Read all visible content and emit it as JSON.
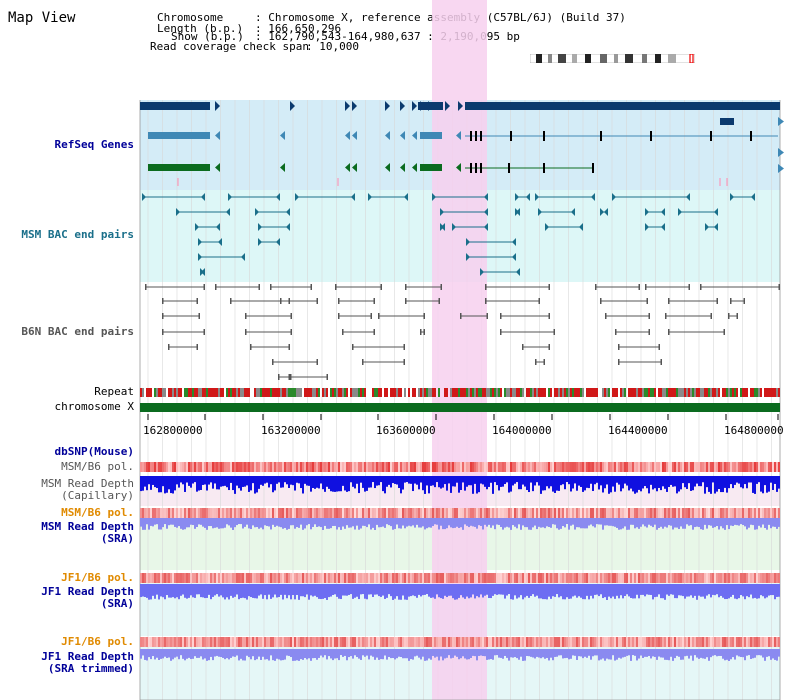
{
  "page_title": "Map View",
  "info": {
    "chromosome_label": "Chromosome",
    "chromosome_value": ": Chromosome X, reference assembly (C57BL/6J) (Build 37)",
    "length_label": "Length (b.p.)",
    "length_value": ": 166,650,296",
    "show_label": "Show (b.p.)",
    "show_value": ": 162,790,543-164,980,637 : 2,190,095 bp",
    "coverage_label": "Read coverage check span",
    "coverage_value": ": 10,000"
  },
  "tracks": {
    "refseq": "RefSeq Genes",
    "msm_bac": "MSM BAC end pairs",
    "b6n_bac": "B6N BAC end pairs",
    "repeat": "Repeat",
    "chromosome": "chromosome X",
    "dbsnp": "dbSNP(Mouse)",
    "msm_pol1": "MSM/B6 pol.",
    "msm_depth_cap_1": "MSM Read Depth",
    "msm_depth_cap_2": "(Capillary)",
    "msm_pol2": "MSM/B6 pol.",
    "msm_depth_sra_1": "MSM Read Depth",
    "msm_depth_sra_2": "(SRA)",
    "jf1_pol1": "JF1/B6 pol.",
    "jf1_depth_sra_1": "JF1 Read Depth",
    "jf1_depth_sra_2": "(SRA)",
    "jf1_pol2": "JF1/B6 pol.",
    "jf1_depth_trim_1": "JF1 Read Depth",
    "jf1_depth_trim_2": "(SRA trimmed)"
  },
  "axis_ticks": [
    "162800000",
    "163200000",
    "163600000",
    "164000000",
    "164400000",
    "164800000"
  ],
  "colors": {
    "highlight": "#f7d0ee",
    "refseq_bg": "#d4ecf7",
    "msm_bac_bg": "#ddf7f7",
    "gene_dark": "#0b3a6e",
    "gene_mid": "#3f88b5",
    "gene_green": "#0b6b1f",
    "msm_bac": "#1a6f8a",
    "b6n_bac": "#555555",
    "chromosome": "#0b6b1f",
    "pol": "#e84545",
    "depth_blue": "#1010e0",
    "depth_light": "#8a8af0",
    "label_blue": "#000099",
    "label_orange": "#e08a00",
    "label_teal": "#1a6f8a"
  }
}
